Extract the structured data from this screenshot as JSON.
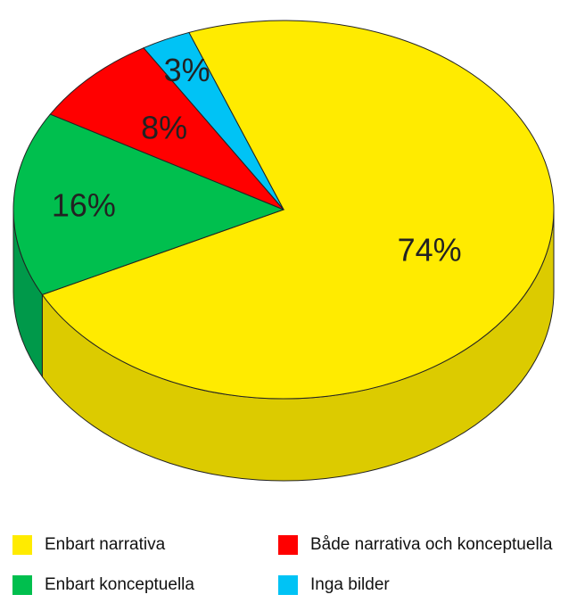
{
  "chart_data": {
    "type": "pie",
    "title": "",
    "slices": [
      {
        "name": "Enbart narrativa",
        "value": 74,
        "label": "74%",
        "color": "#FFEB00",
        "side_color": "#DCCB00"
      },
      {
        "name": "Enbart konceptuella",
        "value": 16,
        "label": "16%",
        "color": "#00BF4E",
        "side_color": "#00994A"
      },
      {
        "name": "Både narrativa och konceptuella",
        "value": 8,
        "label": "8%",
        "color": "#FF0000",
        "side_color": "#CC0000"
      },
      {
        "name": "Inga bilder",
        "value": 3,
        "label": "3%",
        "color": "#00C3F5",
        "side_color": "#009DC5"
      }
    ],
    "legend": {
      "position": "bottom",
      "items": [
        {
          "label": "Enbart narrativa",
          "color": "#FFEB00"
        },
        {
          "label": "Både narrativa och konceptuella",
          "color": "#FF0000"
        },
        {
          "label": "Enbart konceptuella",
          "color": "#00BF4E"
        },
        {
          "label": "Inga bilder",
          "color": "#00C3F5"
        }
      ]
    },
    "style": "3d"
  }
}
